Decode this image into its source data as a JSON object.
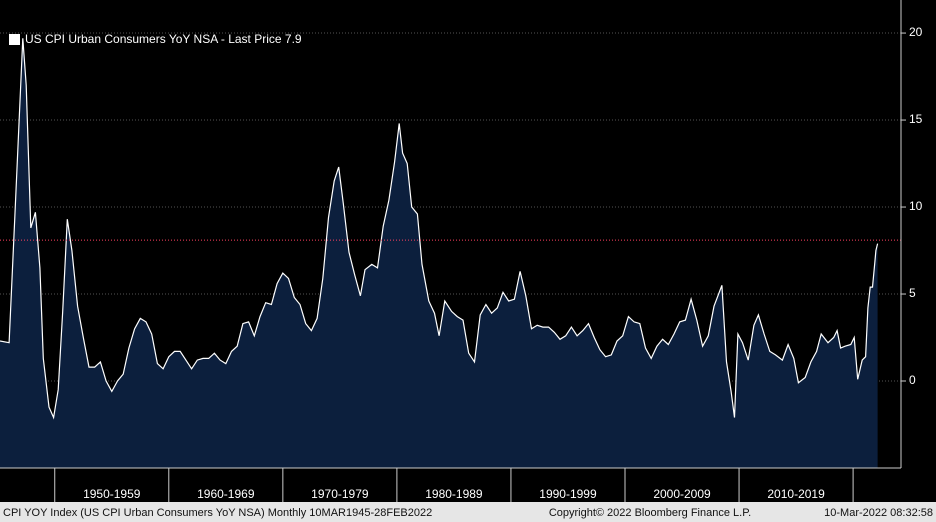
{
  "chart_data": {
    "type": "area",
    "x": [
      1945.2,
      1946.0,
      1946.5,
      1947.2,
      1947.5,
      1947.9,
      1948.3,
      1948.7,
      1949.0,
      1949.5,
      1949.9,
      1950.3,
      1950.7,
      1951.1,
      1951.5,
      1952.0,
      1952.5,
      1953.0,
      1953.5,
      1954.0,
      1954.5,
      1955.0,
      1955.5,
      1956.0,
      1956.5,
      1957.0,
      1957.5,
      1958.0,
      1958.5,
      1959.0,
      1959.5,
      1960.0,
      1960.5,
      1961.0,
      1961.5,
      1962.0,
      1962.5,
      1963.0,
      1963.5,
      1964.0,
      1964.5,
      1965.0,
      1965.5,
      1966.0,
      1966.5,
      1967.0,
      1967.5,
      1968.0,
      1968.5,
      1969.0,
      1969.5,
      1970.0,
      1970.5,
      1971.0,
      1971.5,
      1972.0,
      1972.5,
      1973.0,
      1973.5,
      1974.0,
      1974.5,
      1974.9,
      1975.3,
      1975.8,
      1976.3,
      1976.8,
      1977.2,
      1977.8,
      1978.3,
      1978.8,
      1979.3,
      1979.8,
      1980.2,
      1980.5,
      1980.9,
      1981.3,
      1981.8,
      1982.2,
      1982.8,
      1983.3,
      1983.7,
      1984.2,
      1984.8,
      1985.3,
      1985.8,
      1986.3,
      1986.8,
      1987.3,
      1987.8,
      1988.3,
      1988.8,
      1989.3,
      1989.8,
      1990.3,
      1990.8,
      1991.3,
      1991.8,
      1992.3,
      1992.8,
      1993.3,
      1993.8,
      1994.3,
      1994.8,
      1995.3,
      1995.8,
      1996.3,
      1996.8,
      1997.3,
      1997.8,
      1998.3,
      1998.8,
      1999.3,
      1999.8,
      2000.3,
      2000.8,
      2001.3,
      2001.8,
      2002.3,
      2002.8,
      2003.3,
      2003.8,
      2004.3,
      2004.8,
      2005.3,
      2005.8,
      2006.3,
      2006.8,
      2007.3,
      2007.8,
      2008.5,
      2008.9,
      2009.3,
      2009.6,
      2009.9,
      2010.3,
      2010.8,
      2011.3,
      2011.7,
      2012.2,
      2012.7,
      2013.2,
      2013.8,
      2014.3,
      2014.8,
      2015.2,
      2015.8,
      2016.3,
      2016.8,
      2017.2,
      2017.8,
      2018.3,
      2018.6,
      2018.9,
      2019.3,
      2019.8,
      2020.1,
      2020.4,
      2020.8,
      2021.1,
      2021.3,
      2021.5,
      2021.7,
      2021.9,
      2022.0,
      2022.15
    ],
    "series": [
      {
        "name": "US CPI Urban Consumers YoY NSA - Last Price 7.9",
        "color": "#ffffff",
        "fill": "#0c1f3d",
        "values": [
          2.3,
          2.2,
          9.4,
          19.7,
          17,
          8.8,
          9.7,
          6.5,
          1.3,
          -1.5,
          -2.1,
          -0.5,
          4.0,
          9.3,
          7.5,
          4.3,
          2.5,
          0.8,
          0.8,
          1.1,
          0.0,
          -0.6,
          0.0,
          0.4,
          1.9,
          3.0,
          3.6,
          3.4,
          2.7,
          1.0,
          0.7,
          1.4,
          1.7,
          1.7,
          1.2,
          0.7,
          1.2,
          1.3,
          1.3,
          1.6,
          1.2,
          1.0,
          1.7,
          2.0,
          3.3,
          3.4,
          2.6,
          3.7,
          4.5,
          4.4,
          5.6,
          6.2,
          5.9,
          4.8,
          4.4,
          3.3,
          2.9,
          3.6,
          5.9,
          9.4,
          11.5,
          12.3,
          10.2,
          7.4,
          6.1,
          4.9,
          6.4,
          6.7,
          6.5,
          8.9,
          10.4,
          12.6,
          14.8,
          13.1,
          12.5,
          10.0,
          9.6,
          6.7,
          4.6,
          3.9,
          2.6,
          4.6,
          4.0,
          3.7,
          3.5,
          1.6,
          1.1,
          3.8,
          4.4,
          3.9,
          4.2,
          5.1,
          4.6,
          4.7,
          6.3,
          4.9,
          3.0,
          3.2,
          3.1,
          3.1,
          2.8,
          2.4,
          2.6,
          3.1,
          2.6,
          2.9,
          3.3,
          2.5,
          1.8,
          1.4,
          1.5,
          2.3,
          2.6,
          3.7,
          3.4,
          3.3,
          1.9,
          1.3,
          2.0,
          2.4,
          2.1,
          2.7,
          3.4,
          3.5,
          4.7,
          3.5,
          2.0,
          2.6,
          4.3,
          5.5,
          1.1,
          -0.6,
          -2.1,
          2.7,
          2.2,
          1.2,
          3.2,
          3.8,
          2.7,
          1.7,
          1.5,
          1.2,
          2.1,
          1.3,
          -0.1,
          0.2,
          1.1,
          1.7,
          2.7,
          2.2,
          2.5,
          2.9,
          1.9,
          2.0,
          2.1,
          2.5,
          0.1,
          1.2,
          1.4,
          4.2,
          5.4,
          5.4,
          6.8,
          7.5,
          7.9
        ]
      }
    ],
    "xlim": [
      1945.2,
      2024.2
    ],
    "xticks": [
      {
        "value": 1955,
        "label": "1950-1959"
      },
      {
        "value": 1965,
        "label": "1960-1969"
      },
      {
        "value": 1975,
        "label": "1970-1979"
      },
      {
        "value": 1985,
        "label": "1980-1989"
      },
      {
        "value": 1995,
        "label": "1990-1999"
      },
      {
        "value": 2005,
        "label": "2000-2009"
      },
      {
        "value": 2015,
        "label": "2010-2019"
      }
    ],
    "ylim": [
      -5,
      21.9
    ],
    "yticks": [
      0,
      5,
      10,
      15,
      20
    ],
    "hline": {
      "value": 8.1,
      "color": "#ff4060"
    },
    "grid": true,
    "footer_left": "CPI YOY Index (US CPI Urban Consumers YoY NSA)  Monthly 10MAR1945-28FEB2022",
    "footer_center": "Copyright© 2022 Bloomberg Finance L.P.",
    "footer_right": "10-Mar-2022 08:32:58"
  }
}
